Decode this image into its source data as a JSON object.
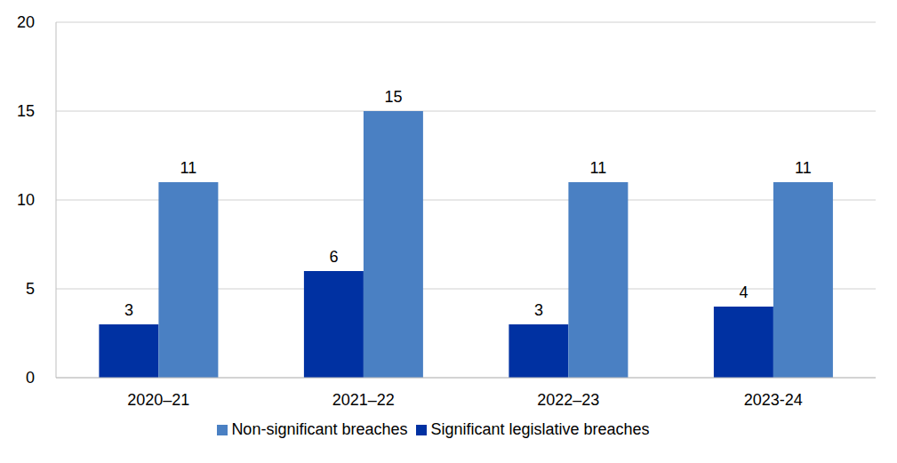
{
  "chart_data": {
    "type": "bar",
    "categories": [
      "2020–21",
      "2021–22",
      "2022–23",
      "2023-24"
    ],
    "series": [
      {
        "name": "Significant legislative breaches",
        "color": "#0031A2",
        "values": [
          3,
          6,
          3,
          4
        ]
      },
      {
        "name": "Non-significant breaches",
        "color": "#4A80C3",
        "values": [
          11,
          15,
          11,
          11
        ]
      }
    ],
    "ylim": [
      0,
      20
    ],
    "yticks": [
      0,
      5,
      10,
      15,
      20
    ],
    "grid": true,
    "legend": "bottom",
    "data_labels": true
  }
}
